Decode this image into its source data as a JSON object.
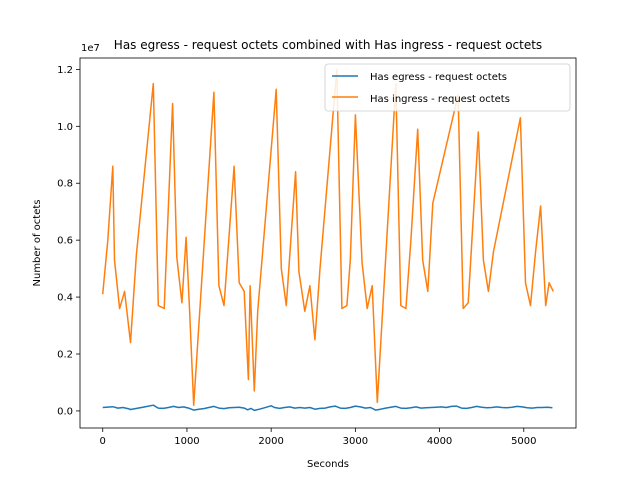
{
  "chart_data": {
    "type": "line",
    "title": "Has egress - request octets combined with Has ingress - request octets",
    "xlabel": "Seconds",
    "ylabel": "Number of octets",
    "offset_text": "1e7",
    "xlim": [
      -270,
      5620
    ],
    "ylim": [
      -0.06,
      1.24
    ],
    "y_scale_note": "y values in units of 1e7",
    "xticks": [
      0,
      1000,
      2000,
      3000,
      4000,
      5000
    ],
    "xtick_labels": [
      "0",
      "1000",
      "2000",
      "3000",
      "4000",
      "5000"
    ],
    "yticks": [
      0.0,
      0.2,
      0.4,
      0.6,
      0.8,
      1.0,
      1.2
    ],
    "ytick_labels": [
      "0.0",
      "0.2",
      "0.4",
      "0.6",
      "0.8",
      "1.0",
      "1.2"
    ],
    "grid": false,
    "legend_position": "upper-right",
    "series": [
      {
        "name": "Has egress - request octets",
        "color": "#1f77b4",
        "x": [
          0,
          120,
          180,
          240,
          300,
          330,
          420,
          500,
          600,
          660,
          720,
          780,
          840,
          900,
          960,
          1020,
          1080,
          1140,
          1200,
          1260,
          1320,
          1380,
          1440,
          1500,
          1560,
          1620,
          1680,
          1720,
          1760,
          1800,
          1860,
          1920,
          2000,
          2040,
          2100,
          2160,
          2220,
          2280,
          2340,
          2400,
          2460,
          2520,
          2580,
          2640,
          2700,
          2760,
          2820,
          2880,
          2940,
          3000,
          3060,
          3120,
          3180,
          3240,
          3300,
          3360,
          3420,
          3480,
          3540,
          3600,
          3660,
          3720,
          3780,
          3840,
          3900,
          3960,
          4020,
          4080,
          4140,
          4200,
          4260,
          4320,
          4380,
          4440,
          4500,
          4560,
          4620,
          4680,
          4740,
          4800,
          4860,
          4920,
          4980,
          5040,
          5100,
          5160,
          5220,
          5280,
          5340
        ],
        "values": [
          0.012,
          0.015,
          0.01,
          0.012,
          0.008,
          0.005,
          0.01,
          0.014,
          0.02,
          0.01,
          0.009,
          0.012,
          0.016,
          0.012,
          0.014,
          0.01,
          0.003,
          0.006,
          0.008,
          0.012,
          0.016,
          0.01,
          0.008,
          0.011,
          0.012,
          0.013,
          0.01,
          0.004,
          0.009,
          0.002,
          0.006,
          0.011,
          0.018,
          0.012,
          0.009,
          0.012,
          0.014,
          0.01,
          0.012,
          0.01,
          0.012,
          0.006,
          0.009,
          0.01,
          0.014,
          0.017,
          0.01,
          0.009,
          0.012,
          0.017,
          0.014,
          0.01,
          0.012,
          0.003,
          0.006,
          0.01,
          0.013,
          0.016,
          0.01,
          0.009,
          0.011,
          0.014,
          0.01,
          0.011,
          0.012,
          0.013,
          0.014,
          0.012,
          0.016,
          0.017,
          0.01,
          0.009,
          0.012,
          0.016,
          0.013,
          0.011,
          0.012,
          0.014,
          0.012,
          0.011,
          0.013,
          0.016,
          0.014,
          0.011,
          0.01,
          0.012,
          0.012,
          0.013,
          0.011
        ]
      },
      {
        "name": "Has ingress - request octets",
        "color": "#ff7f0e",
        "x": [
          0,
          60,
          120,
          140,
          200,
          260,
          330,
          400,
          600,
          660,
          730,
          830,
          880,
          940,
          990,
          1030,
          1080,
          1320,
          1380,
          1440,
          1560,
          1620,
          1680,
          1730,
          1750,
          1800,
          1840,
          2060,
          2120,
          2180,
          2240,
          2290,
          2330,
          2400,
          2460,
          2520,
          2580,
          2780,
          2840,
          2900,
          2940,
          3000,
          3080,
          3140,
          3200,
          3260,
          3480,
          3540,
          3600,
          3660,
          3740,
          3800,
          3860,
          3920,
          4220,
          4280,
          4340,
          4460,
          4520,
          4580,
          4640,
          4960,
          5020,
          5080,
          5140,
          5200,
          5260,
          5300,
          5350
        ],
        "values": [
          0.41,
          0.6,
          0.86,
          0.53,
          0.36,
          0.42,
          0.24,
          0.55,
          1.15,
          0.37,
          0.36,
          1.08,
          0.54,
          0.38,
          0.61,
          0.36,
          0.02,
          1.12,
          0.44,
          0.37,
          0.86,
          0.45,
          0.42,
          0.11,
          0.44,
          0.07,
          0.35,
          1.13,
          0.5,
          0.37,
          0.63,
          0.84,
          0.49,
          0.35,
          0.44,
          0.25,
          0.5,
          1.2,
          0.36,
          0.37,
          0.53,
          1.04,
          0.52,
          0.36,
          0.44,
          0.03,
          1.15,
          0.37,
          0.36,
          0.6,
          0.99,
          0.53,
          0.42,
          0.73,
          1.11,
          0.36,
          0.38,
          0.98,
          0.53,
          0.42,
          0.56,
          1.03,
          0.45,
          0.37,
          0.56,
          0.72,
          0.37,
          0.45,
          0.42
        ]
      }
    ]
  }
}
